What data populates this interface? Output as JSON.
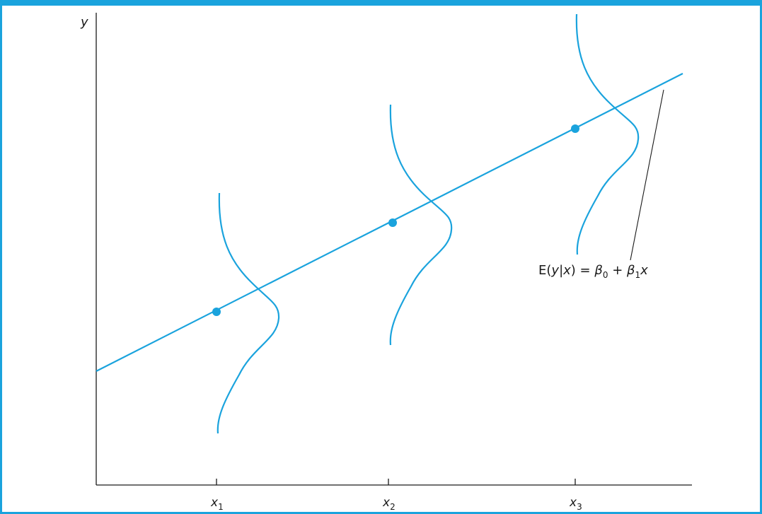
{
  "colors": {
    "frame": "#1aa3dd",
    "curve": "#1aa3dd",
    "axis": "#1a1a1a"
  },
  "axes": {
    "y_label": "y",
    "x_ticks": [
      {
        "base": "x",
        "sub": "1"
      },
      {
        "base": "x",
        "sub": "2"
      },
      {
        "base": "x",
        "sub": "3"
      }
    ]
  },
  "equation": {
    "p1": "E(",
    "v1": "y",
    "p2": "|",
    "v2": "x",
    "p3": ") = ",
    "beta": "β",
    "sub0": "0",
    "plus": " + ",
    "sub1": "1",
    "v3": "x"
  }
}
